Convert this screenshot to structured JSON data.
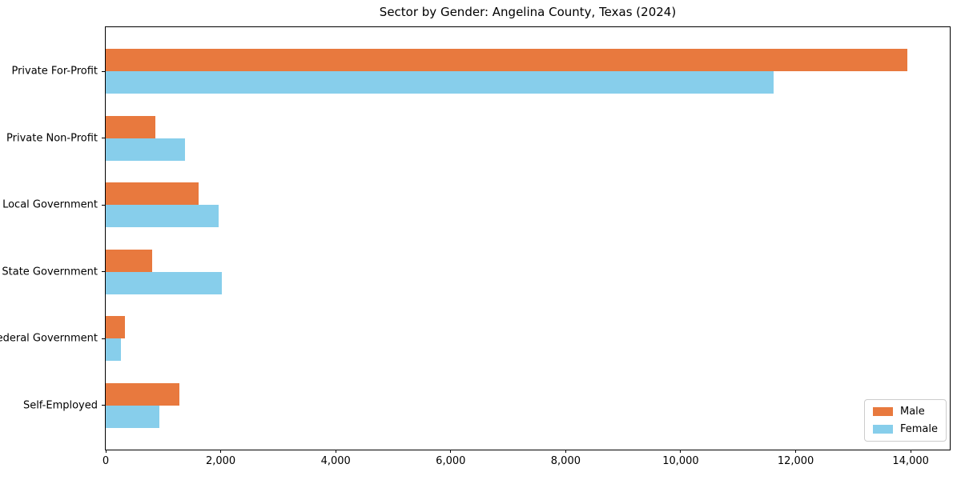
{
  "chart_data": {
    "type": "bar",
    "orientation": "horizontal",
    "title": "Sector by Gender: Angelina County, Texas (2024)",
    "categories": [
      "Private For-Profit",
      "Private Non-Profit",
      "Local Government",
      "State Government",
      "Federal Government",
      "Self-Employed"
    ],
    "series": [
      {
        "name": "Male",
        "color": "#E8793E",
        "values": [
          13940,
          870,
          1620,
          810,
          340,
          1280
        ]
      },
      {
        "name": "Female",
        "color": "#87CEEB",
        "values": [
          11610,
          1380,
          1970,
          2020,
          270,
          940
        ]
      }
    ],
    "xlim": [
      0,
      14680
    ],
    "xticks": [
      {
        "value": 0,
        "label": "0"
      },
      {
        "value": 2000,
        "label": "2,000"
      },
      {
        "value": 4000,
        "label": "4,000"
      },
      {
        "value": 6000,
        "label": "6,000"
      },
      {
        "value": 8000,
        "label": "8,000"
      },
      {
        "value": 10000,
        "label": "10,000"
      },
      {
        "value": 12000,
        "label": "12,000"
      },
      {
        "value": 14000,
        "label": "14,000"
      }
    ],
    "grid": false,
    "legend_position": "lower right",
    "axis_color": "#000000",
    "background_color": "#ffffff"
  }
}
